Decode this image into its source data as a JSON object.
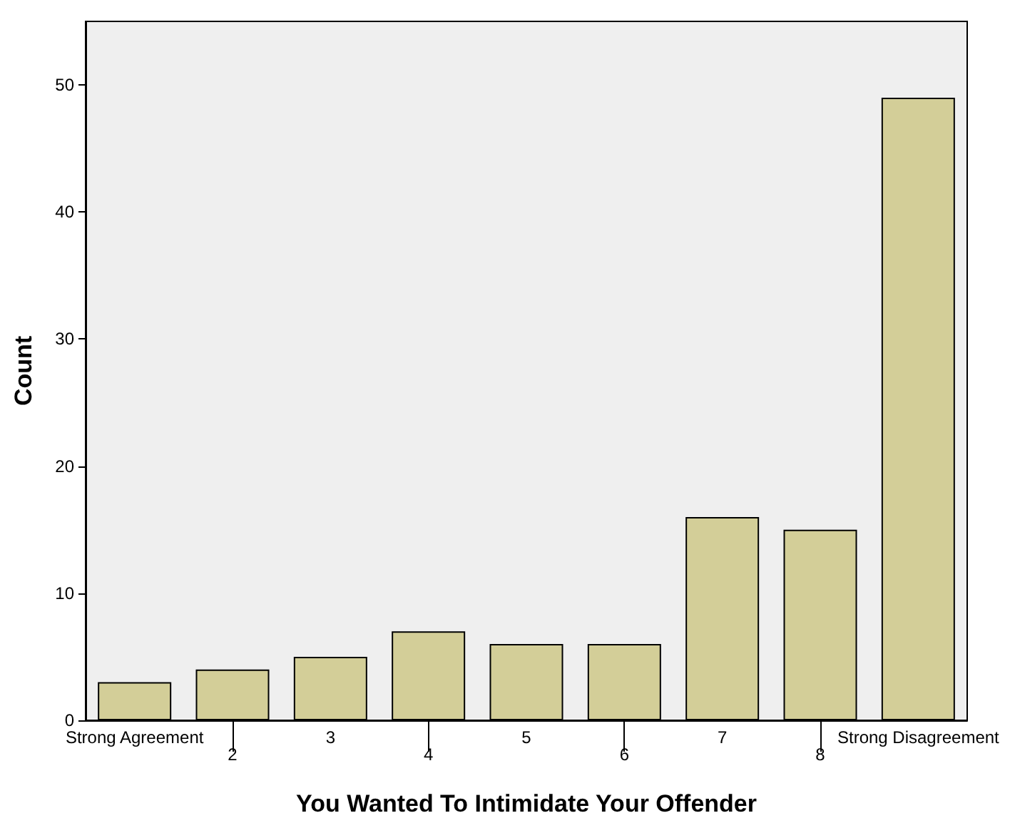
{
  "chart_data": {
    "type": "bar",
    "xlabel": "You Wanted To Intimidate Your Offender",
    "ylabel": "Count",
    "categories": [
      "Strong Agreement",
      "2",
      "3",
      "4",
      "5",
      "6",
      "7",
      "8",
      "Strong Disagreement"
    ],
    "values": [
      3,
      4,
      5,
      7,
      6,
      6,
      16,
      15,
      49
    ],
    "color": "#d3ce98",
    "ylim": [
      0,
      55
    ],
    "yticks": [
      0,
      10,
      20,
      30,
      40,
      50
    ],
    "grid": false
  }
}
